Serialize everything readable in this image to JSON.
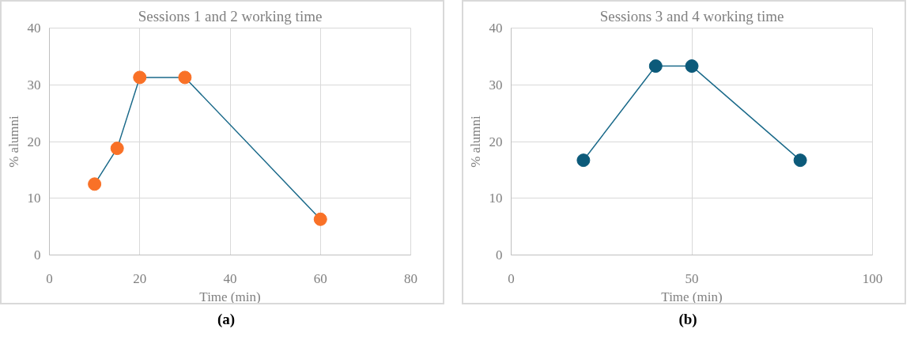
{
  "chart_data": [
    {
      "type": "line",
      "title": "Sessions 1 and 2 working time",
      "xlabel": "Time (min)",
      "ylabel": "% alumni",
      "annotations": [
        "(a)"
      ],
      "x": [
        10,
        15,
        20,
        30,
        60
      ],
      "xlim": [
        0,
        80
      ],
      "xticks": [
        0,
        20,
        40,
        60,
        80
      ],
      "ylim": [
        0,
        40
      ],
      "yticks": [
        0,
        10,
        20,
        30,
        40
      ],
      "grid": true,
      "marker": "circle",
      "line_style": "solid",
      "series": [
        {
          "color": "#1b6a8a",
          "colors": [
            "#f97127",
            "#f97127",
            "#f97127",
            "#f97127",
            "#f97127"
          ],
          "values": [
            12.5,
            18.8,
            31.3,
            31.3,
            6.3
          ]
        }
      ]
    },
    {
      "type": "line",
      "title": "Sessions 3 and 4 working time",
      "xlabel": "Time (min)",
      "ylabel": "% alumni",
      "annotations": [
        "(b)"
      ],
      "x": [
        20,
        40,
        50,
        80
      ],
      "xlim": [
        0,
        100
      ],
      "xticks": [
        0,
        50,
        100
      ],
      "ylim": [
        0,
        40
      ],
      "yticks": [
        0,
        10,
        20,
        30,
        40
      ],
      "grid": true,
      "marker": "circle",
      "line_style": "solid",
      "series": [
        {
          "color": "#1b6a8a",
          "colors": [
            "#0c5a7a",
            "#0c5a7a",
            "#0c5a7a",
            "#0c5a7a"
          ],
          "values": [
            16.7,
            33.3,
            33.3,
            16.7
          ]
        }
      ]
    }
  ]
}
